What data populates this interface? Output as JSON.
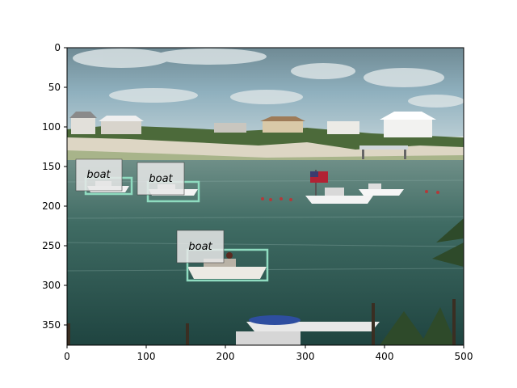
{
  "plot": {
    "x_ticks": [
      "0",
      "100",
      "200",
      "300",
      "400",
      "500"
    ],
    "y_ticks": [
      "0",
      "50",
      "100",
      "150",
      "200",
      "250",
      "300",
      "350"
    ],
    "box_color": "#8fdcc0",
    "label_bg": "#e8e8e8"
  },
  "detections": [
    {
      "label": "boat"
    },
    {
      "label": "boat"
    },
    {
      "label": "boat"
    }
  ]
}
